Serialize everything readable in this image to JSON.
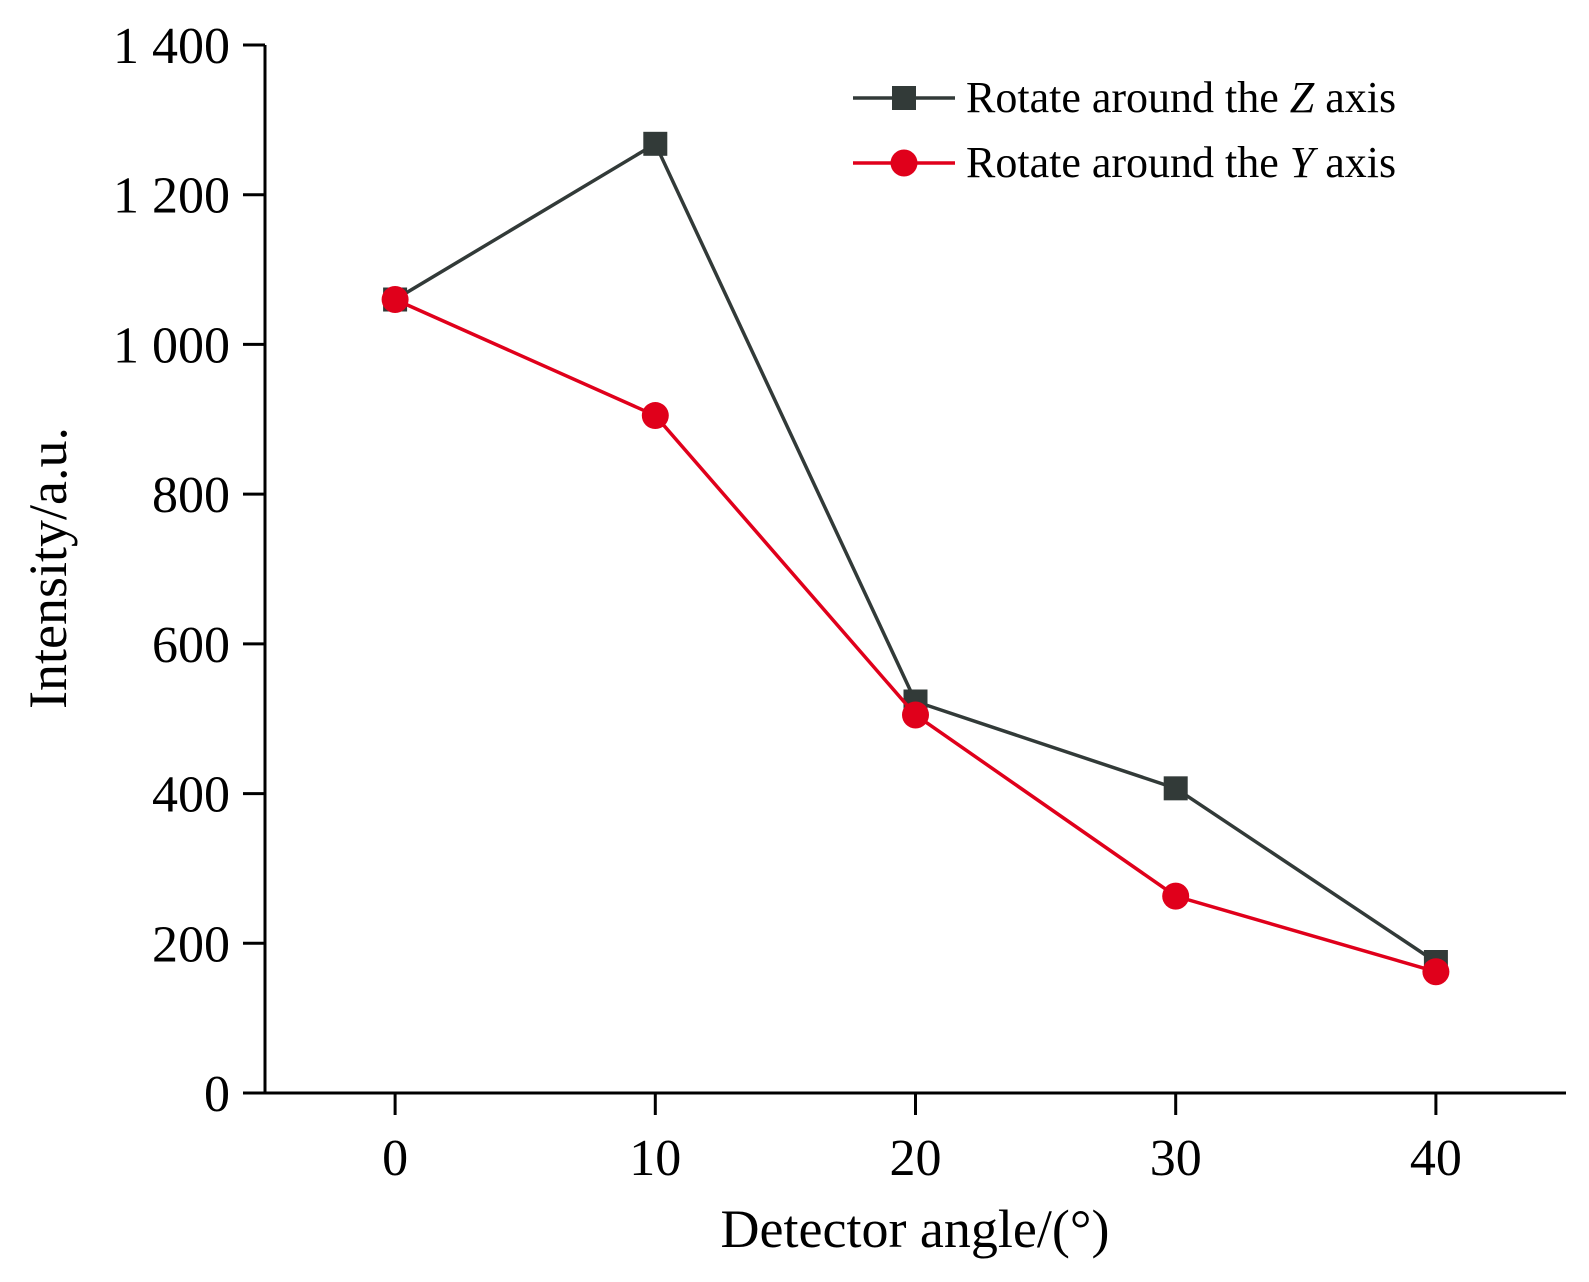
{
  "chart_data": {
    "type": "line",
    "title": "",
    "xlabel": "Detector angle/(°)",
    "ylabel": "Intensity/a.u.",
    "x": [
      0,
      10,
      20,
      30,
      40
    ],
    "x_ticks": [
      "0",
      "10",
      "20",
      "30",
      "40"
    ],
    "xlim": [
      -5,
      45
    ],
    "ylim": [
      0,
      1400
    ],
    "y_ticks": [
      "0",
      "200",
      "400",
      "600",
      "800",
      "1 000",
      "1 200",
      "1 400"
    ],
    "grid": false,
    "legend_position": "top-right",
    "series": [
      {
        "name": "Rotate around the Z axis",
        "legend_prefix": "Rotate around the ",
        "legend_italic": "Z",
        "legend_suffix": " axis",
        "marker": "square",
        "color": "#323a38",
        "values": [
          1060,
          1268,
          523,
          407,
          175
        ]
      },
      {
        "name": "Rotate around the Y axis",
        "legend_prefix": "Rotate around the ",
        "legend_italic": "Y",
        "legend_suffix": " axis",
        "marker": "circle",
        "color": "#e0001b",
        "values": [
          1060,
          905,
          505,
          263,
          162
        ]
      }
    ]
  }
}
